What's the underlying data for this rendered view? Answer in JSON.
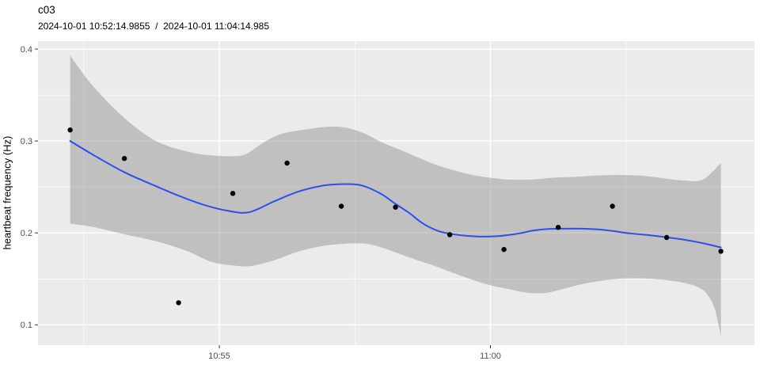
{
  "chart_data": {
    "type": "scatter",
    "title": "c03",
    "subtitle": "2024-10-01 10:52:14.9855  /  2024-10-01 11:04:14.985",
    "xlabel": "",
    "ylabel": "heartbeat frequency (Hz)",
    "legend": "none",
    "grid": "on",
    "x_axis": {
      "major_ticks": [
        {
          "label": "10:55",
          "time": "10:55:00"
        },
        {
          "label": "11:00",
          "time": "11:00:00"
        }
      ],
      "minor_tick_times": [
        "10:52:30",
        "10:57:30",
        "11:02:30"
      ],
      "display_range": [
        "10:51:39",
        "11:04:51"
      ]
    },
    "y_axis": {
      "major_ticks": [
        {
          "label": "0.1",
          "value": 0.1
        },
        {
          "label": "0.2",
          "value": 0.2
        },
        {
          "label": "0.3",
          "value": 0.3
        },
        {
          "label": "0.4",
          "value": 0.4
        }
      ],
      "minor_tick_values": [
        0.15,
        0.25,
        0.35
      ],
      "display_range": [
        0.078,
        0.409
      ]
    },
    "time_origin": "10:50:00",
    "points": [
      {
        "time": "10:52:15",
        "hz": 0.312
      },
      {
        "time": "10:53:15",
        "hz": 0.281
      },
      {
        "time": "10:54:15",
        "hz": 0.124
      },
      {
        "time": "10:55:15",
        "hz": 0.243
      },
      {
        "time": "10:56:15",
        "hz": 0.276
      },
      {
        "time": "10:57:15",
        "hz": 0.229
      },
      {
        "time": "10:58:15",
        "hz": 0.228
      },
      {
        "time": "10:59:15",
        "hz": 0.198
      },
      {
        "time": "11:00:15",
        "hz": 0.182
      },
      {
        "time": "11:01:15",
        "hz": 0.206
      },
      {
        "time": "11:02:15",
        "hz": 0.229
      },
      {
        "time": "11:03:15",
        "hz": 0.195
      },
      {
        "time": "11:04:15",
        "hz": 0.18
      }
    ],
    "smooth_line": {
      "t_unit": "seconds_after_time_origin",
      "values": [
        [
          135,
          0.3
        ],
        [
          162,
          0.284
        ],
        [
          195,
          0.266
        ],
        [
          226,
          0.2525
        ],
        [
          255,
          0.2405
        ],
        [
          283,
          0.2305
        ],
        [
          310,
          0.224
        ],
        [
          333,
          0.2225
        ],
        [
          360,
          0.234
        ],
        [
          386,
          0.2445
        ],
        [
          412,
          0.251
        ],
        [
          434,
          0.253
        ],
        [
          456,
          0.252
        ],
        [
          478,
          0.243
        ],
        [
          495,
          0.2315
        ],
        [
          509,
          0.2225
        ],
        [
          522,
          0.2125
        ],
        [
          530,
          0.2075
        ],
        [
          544,
          0.2015
        ],
        [
          559,
          0.1985
        ],
        [
          574,
          0.1968
        ],
        [
          589,
          0.196
        ],
        [
          605,
          0.1963
        ],
        [
          618,
          0.1975
        ],
        [
          634,
          0.1998
        ],
        [
          647,
          0.2025
        ],
        [
          662,
          0.2042
        ],
        [
          676,
          0.2045
        ],
        [
          692,
          0.2047
        ],
        [
          706,
          0.2045
        ],
        [
          723,
          0.2035
        ],
        [
          736,
          0.202
        ],
        [
          754,
          0.1995
        ],
        [
          776,
          0.1975
        ],
        [
          796,
          0.1951
        ],
        [
          815,
          0.1925
        ],
        [
          835,
          0.1888
        ],
        [
          855,
          0.1842
        ]
      ]
    },
    "confidence_ribbon": {
      "t_unit": "seconds_after_time_origin",
      "upper": [
        [
          135,
          0.393
        ],
        [
          160,
          0.36
        ],
        [
          195,
          0.325
        ],
        [
          230,
          0.3
        ],
        [
          265,
          0.2885
        ],
        [
          290,
          0.2845
        ],
        [
          315,
          0.2835
        ],
        [
          330,
          0.286
        ],
        [
          350,
          0.299
        ],
        [
          370,
          0.308
        ],
        [
          395,
          0.3125
        ],
        [
          420,
          0.3155
        ],
        [
          440,
          0.3145
        ],
        [
          460,
          0.3085
        ],
        [
          480,
          0.2985
        ],
        [
          500,
          0.2905
        ],
        [
          520,
          0.282
        ],
        [
          540,
          0.274
        ],
        [
          560,
          0.268
        ],
        [
          580,
          0.263
        ],
        [
          600,
          0.26
        ],
        [
          620,
          0.258
        ],
        [
          645,
          0.258
        ],
        [
          670,
          0.26
        ],
        [
          695,
          0.261
        ],
        [
          720,
          0.2625
        ],
        [
          745,
          0.263
        ],
        [
          770,
          0.262
        ],
        [
          795,
          0.259
        ],
        [
          815,
          0.257
        ],
        [
          835,
          0.258
        ],
        [
          855,
          0.276
        ]
      ],
      "lower": [
        [
          135,
          0.21
        ],
        [
          160,
          0.2065
        ],
        [
          195,
          0.1985
        ],
        [
          230,
          0.191
        ],
        [
          265,
          0.18
        ],
        [
          290,
          0.169
        ],
        [
          315,
          0.1645
        ],
        [
          335,
          0.164
        ],
        [
          360,
          0.17
        ],
        [
          385,
          0.179
        ],
        [
          410,
          0.185
        ],
        [
          435,
          0.188
        ],
        [
          460,
          0.1885
        ],
        [
          480,
          0.184
        ],
        [
          500,
          0.177
        ],
        [
          520,
          0.17
        ],
        [
          540,
          0.1635
        ],
        [
          560,
          0.156
        ],
        [
          580,
          0.149
        ],
        [
          600,
          0.143
        ],
        [
          620,
          0.139
        ],
        [
          640,
          0.135
        ],
        [
          660,
          0.1345
        ],
        [
          680,
          0.139
        ],
        [
          700,
          0.144
        ],
        [
          720,
          0.1475
        ],
        [
          740,
          0.15
        ],
        [
          760,
          0.1505
        ],
        [
          780,
          0.15
        ],
        [
          800,
          0.148
        ],
        [
          815,
          0.1455
        ],
        [
          830,
          0.141
        ],
        [
          840,
          0.133
        ],
        [
          848,
          0.118
        ],
        [
          855,
          0.088
        ]
      ]
    },
    "colors": {
      "panel_background": "#EBEBEB",
      "grid_major": "#FFFFFF",
      "grid_minor": "#FFFFFF",
      "ribbon": "rgba(140,140,140,0.45)",
      "smooth_line": "#2E4FEA",
      "point": "#000000",
      "axis_text": "#4D4D4D",
      "tick_mark": "#333333",
      "title_text": "#000000"
    }
  }
}
